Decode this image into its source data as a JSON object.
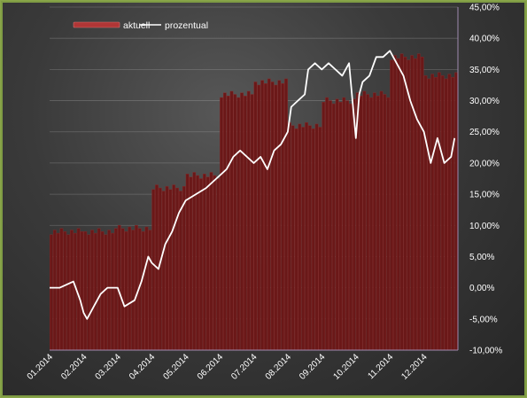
{
  "chart_data": {
    "type": "bar+line",
    "title": "",
    "xlabel": "",
    "ylabel": "",
    "legend": {
      "position": "top-left",
      "entries": [
        {
          "name": "aktuell",
          "type": "bar",
          "color": "#7a1a1a"
        },
        {
          "name": "prozentual",
          "type": "line",
          "color": "#ffffff"
        }
      ]
    },
    "x_ticks": [
      "01.2014",
      "02.2014",
      "03.2014",
      "04.2014",
      "05.2014",
      "06.2014",
      "07.2014",
      "08.2014",
      "09.2014",
      "10.2014",
      "11.2014",
      "12.2014"
    ],
    "y_ticks": [
      "45,00%",
      "40,00%",
      "35,00%",
      "30,00%",
      "25,00%",
      "20,00%",
      "15,00%",
      "10,00%",
      "5,00%",
      "0,00%",
      "-5,00%",
      "-10,00%"
    ],
    "ylim": [
      -10,
      45
    ],
    "grid": "horizontal",
    "series": [
      {
        "name": "aktuell",
        "type": "bar",
        "note": "approximate level per month, read against right axis",
        "months": [
          "01.2014",
          "02.2014",
          "03.2014",
          "04.2014",
          "05.2014",
          "06.2014",
          "07.2014",
          "08.2014",
          "09.2014",
          "10.2014",
          "11.2014",
          "12.2014"
        ],
        "values": [
          9,
          9,
          9.5,
          16,
          18,
          31,
          33,
          26,
          30,
          31,
          37,
          34
        ]
      },
      {
        "name": "prozentual",
        "type": "line",
        "x": [
          0,
          0.3,
          0.5,
          0.7,
          0.9,
          1.0,
          1.1,
          1.3,
          1.5,
          1.7,
          2.0,
          2.2,
          2.5,
          2.7,
          2.9,
          3.0,
          3.2,
          3.4,
          3.6,
          3.8,
          4.0,
          4.3,
          4.6,
          4.8,
          5.0,
          5.2,
          5.4,
          5.6,
          5.8,
          6.0,
          6.2,
          6.4,
          6.6,
          6.8,
          7.0,
          7.1,
          7.3,
          7.5,
          7.6,
          7.8,
          8.0,
          8.2,
          8.4,
          8.6,
          8.8,
          9.0,
          9.1,
          9.2,
          9.4,
          9.6,
          9.8,
          10.0,
          10.2,
          10.4,
          10.6,
          10.8,
          11.0,
          11.2,
          11.4,
          11.6,
          11.8,
          11.9
        ],
        "values": [
          0,
          0,
          0.5,
          1,
          -2,
          -4,
          -5,
          -3,
          -1,
          0,
          0,
          -3,
          -2,
          1,
          5,
          4,
          3,
          7,
          9,
          12,
          14,
          15,
          16,
          17,
          18,
          19,
          21,
          22,
          21,
          20,
          21,
          19,
          22,
          23,
          25,
          29,
          30,
          31,
          35,
          36,
          35,
          36,
          35,
          34,
          36,
          24,
          31,
          33,
          34,
          37,
          37,
          38,
          36,
          34,
          30,
          27,
          25,
          20,
          24,
          20,
          21,
          24
        ]
      }
    ]
  }
}
